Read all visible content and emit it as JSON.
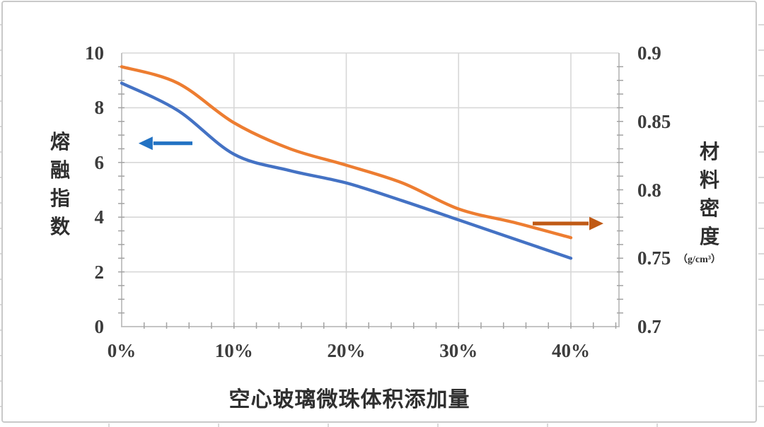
{
  "chart_data": {
    "type": "line",
    "title": "",
    "x_percent": [
      0,
      5,
      10,
      15,
      20,
      25,
      30,
      35,
      40
    ],
    "series": [
      {
        "name": "熔融指数",
        "axis": "left",
        "color": "#4472C4",
        "values": [
          8.9,
          7.9,
          6.3,
          5.7,
          5.25,
          4.6,
          3.9,
          3.2,
          2.5
        ]
      },
      {
        "name": "材料密度",
        "axis": "right",
        "color": "#ED7D31",
        "values": [
          0.89,
          0.878,
          0.849,
          0.83,
          0.818,
          0.805,
          0.786,
          0.776,
          0.765
        ]
      }
    ],
    "x_axis": {
      "title": "空心玻璃微珠体积添加量",
      "ticks": [
        "0%",
        "10%",
        "20%",
        "30%",
        "40%"
      ],
      "tick_percent": [
        0,
        10,
        20,
        30,
        40
      ],
      "min": 0,
      "max": 44.3
    },
    "left_axis": {
      "title": "熔融指数",
      "ticks": [
        "10",
        "8",
        "6",
        "4",
        "2",
        "0"
      ],
      "min": 0,
      "max": 10
    },
    "right_axis": {
      "title": "材料密度",
      "unit": "（g/cm³）",
      "ticks": [
        "0.9",
        "0.85",
        "0.8",
        "0.75",
        "0.7"
      ],
      "min": 0.7,
      "max": 0.9
    },
    "annotations": [
      {
        "label": "left-axis-arrow",
        "direction": "left",
        "color": "#2272C3",
        "x_from_pct": 6.3,
        "x_to_pct": 1.5,
        "y_value_left_axis": 6.7
      },
      {
        "label": "right-axis-arrow",
        "direction": "right",
        "color": "#C05A15",
        "x_from_pct": 36.6,
        "x_to_pct": 42.9,
        "y_value_left_axis": 3.77
      }
    ],
    "grid": true,
    "legend": "none"
  }
}
